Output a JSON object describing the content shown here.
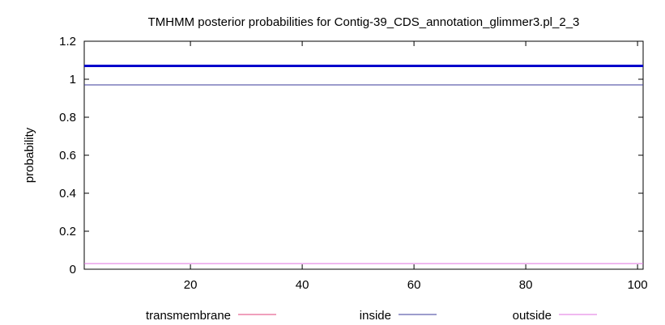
{
  "chart_data": {
    "type": "line",
    "title": "TMHMM posterior probabilities for Contig-39_CDS_annotation_glimmer3.pl_2_3",
    "xlabel": "",
    "ylabel": "probability",
    "xlim": [
      1,
      101
    ],
    "ylim": [
      0,
      1.2
    ],
    "xticks": [
      20,
      40,
      60,
      80,
      100
    ],
    "yticks": [
      0,
      0.2,
      0.4,
      0.6,
      0.8,
      1,
      1.2
    ],
    "ytick_labels": [
      "0",
      "0.2",
      "0.4",
      "0.6",
      "0.8",
      "1",
      "1.2"
    ],
    "grid": false,
    "legend_position": "bottom",
    "series": [
      {
        "name": "transmembrane",
        "color": "#e0407a",
        "x": [
          1,
          101
        ],
        "y": [
          0,
          0
        ]
      },
      {
        "name": "inside",
        "color": "#3a3a9a",
        "x": [
          1,
          101
        ],
        "y": [
          0.97,
          0.97
        ]
      },
      {
        "name": "outside",
        "color": "#e070e0",
        "x": [
          1,
          101
        ],
        "y": [
          0.03,
          0.03
        ]
      }
    ],
    "bar": {
      "color": "#0000cc",
      "y": 1.07,
      "x": [
        1,
        101
      ]
    }
  }
}
